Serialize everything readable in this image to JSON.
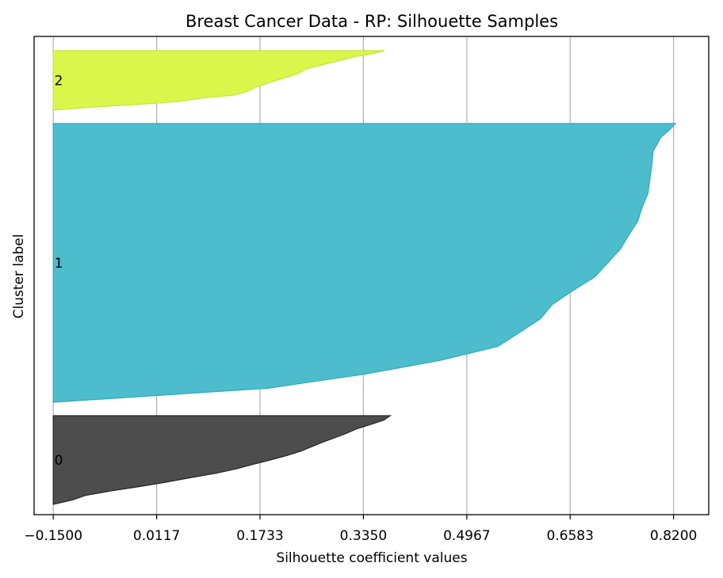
{
  "chart_data": {
    "type": "area",
    "title": "Breast Cancer Data - RP: Silhouette Samples",
    "xlabel": "Silhouette coefficient values",
    "ylabel": "Cluster label",
    "xlim": [
      -0.18,
      0.875
    ],
    "xticks": [
      "-0.1500",
      "0.0117",
      "0.1733",
      "0.3350",
      "0.4967",
      "0.6583",
      "0.8200"
    ],
    "xtick_values": [
      -0.15,
      0.0117,
      0.1733,
      0.335,
      0.4967,
      0.6583,
      0.82
    ],
    "grid": "vertical",
    "baseline": -0.15,
    "clusters": [
      {
        "label": "0",
        "color": "#4d4d4d",
        "edge": "#262626",
        "count": 80,
        "profile": [
          [
            0.0,
            0.377
          ],
          [
            0.05,
            0.367
          ],
          [
            0.1,
            0.346
          ],
          [
            0.15,
            0.324
          ],
          [
            0.2,
            0.308
          ],
          [
            0.25,
            0.29
          ],
          [
            0.3,
            0.271
          ],
          [
            0.35,
            0.254
          ],
          [
            0.4,
            0.237
          ],
          [
            0.45,
            0.215
          ],
          [
            0.5,
            0.189
          ],
          [
            0.55,
            0.162
          ],
          [
            0.6,
            0.136
          ],
          [
            0.65,
            0.104
          ],
          [
            0.7,
            0.064
          ],
          [
            0.75,
            0.026
          ],
          [
            0.8,
            -0.016
          ],
          [
            0.85,
            -0.061
          ],
          [
            0.9,
            -0.1
          ],
          [
            0.95,
            -0.12
          ],
          [
            1.0,
            -0.15
          ]
        ]
      },
      {
        "label": "1",
        "color": "#4dbdcd",
        "edge": "#31a9b8",
        "count": 284,
        "profile": [
          [
            0.0,
            0.823
          ],
          [
            0.02,
            0.815
          ],
          [
            0.05,
            0.8
          ],
          [
            0.1,
            0.788
          ],
          [
            0.15,
            0.786
          ],
          [
            0.2,
            0.783
          ],
          [
            0.25,
            0.78
          ],
          [
            0.3,
            0.771
          ],
          [
            0.35,
            0.764
          ],
          [
            0.4,
            0.75
          ],
          [
            0.45,
            0.737
          ],
          [
            0.5,
            0.717
          ],
          [
            0.55,
            0.697
          ],
          [
            0.6,
            0.662
          ],
          [
            0.65,
            0.63
          ],
          [
            0.7,
            0.612
          ],
          [
            0.75,
            0.579
          ],
          [
            0.8,
            0.545
          ],
          [
            0.85,
            0.455
          ],
          [
            0.9,
            0.335
          ],
          [
            0.95,
            0.185
          ],
          [
            1.0,
            -0.15
          ]
        ]
      },
      {
        "label": "2",
        "color": "#dbf64a",
        "edge": "#c8e43a",
        "count": 60,
        "profile": [
          [
            0.0,
            0.368
          ],
          [
            0.05,
            0.35
          ],
          [
            0.1,
            0.322
          ],
          [
            0.2,
            0.285
          ],
          [
            0.3,
            0.247
          ],
          [
            0.4,
            0.23
          ],
          [
            0.5,
            0.199
          ],
          [
            0.6,
            0.17
          ],
          [
            0.7,
            0.15
          ],
          [
            0.75,
            0.13
          ],
          [
            0.8,
            0.08
          ],
          [
            0.85,
            0.05
          ],
          [
            0.9,
            -0.01
          ],
          [
            0.95,
            -0.09
          ],
          [
            1.0,
            -0.15
          ]
        ]
      }
    ]
  }
}
